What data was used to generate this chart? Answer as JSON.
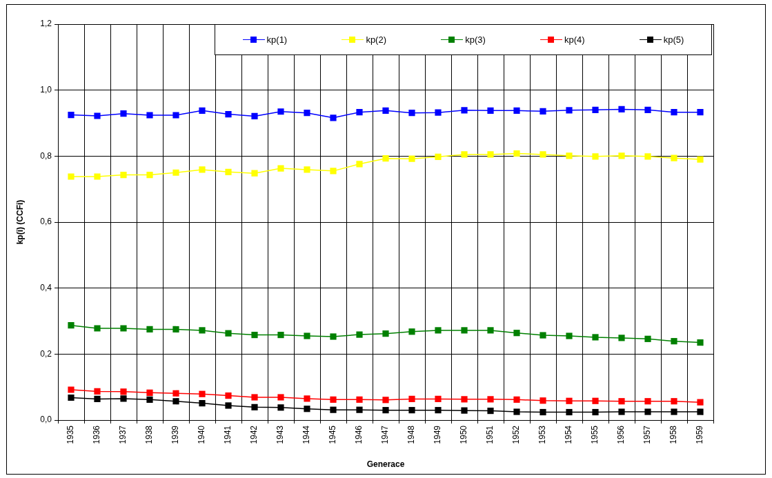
{
  "chart_data": {
    "type": "line",
    "xlabel": "Generace",
    "ylabel": "kp(i) (CCFi)",
    "categories": [
      "1935",
      "1936",
      "1937",
      "1938",
      "1939",
      "1940",
      "1941",
      "1942",
      "1943",
      "1944",
      "1945",
      "1946",
      "1947",
      "1948",
      "1949",
      "1950",
      "1951",
      "1952",
      "1953",
      "1954",
      "1955",
      "1956",
      "1957",
      "1958",
      "1959"
    ],
    "series": [
      {
        "name": "kp(1)",
        "color": "#0000ff",
        "values": [
          0.925,
          0.922,
          0.929,
          0.924,
          0.924,
          0.938,
          0.927,
          0.921,
          0.935,
          0.931,
          0.916,
          0.933,
          0.938,
          0.931,
          0.932,
          0.939,
          0.938,
          0.938,
          0.936,
          0.939,
          0.94,
          0.942,
          0.94,
          0.933,
          0.933
        ]
      },
      {
        "name": "kp(2)",
        "color": "#ffff00",
        "values": [
          0.738,
          0.738,
          0.743,
          0.743,
          0.75,
          0.759,
          0.752,
          0.748,
          0.763,
          0.759,
          0.755,
          0.776,
          0.793,
          0.792,
          0.798,
          0.805,
          0.805,
          0.808,
          0.805,
          0.801,
          0.799,
          0.801,
          0.799,
          0.794,
          0.79
        ]
      },
      {
        "name": "kp(3)",
        "color": "#008000",
        "values": [
          0.287,
          0.278,
          0.278,
          0.275,
          0.275,
          0.272,
          0.263,
          0.258,
          0.258,
          0.255,
          0.253,
          0.259,
          0.262,
          0.268,
          0.272,
          0.272,
          0.272,
          0.264,
          0.257,
          0.255,
          0.251,
          0.249,
          0.246,
          0.239,
          0.235
        ]
      },
      {
        "name": "kp(4)",
        "color": "#ff0000",
        "values": [
          0.092,
          0.087,
          0.086,
          0.083,
          0.081,
          0.079,
          0.074,
          0.069,
          0.069,
          0.065,
          0.062,
          0.062,
          0.061,
          0.064,
          0.064,
          0.063,
          0.063,
          0.062,
          0.059,
          0.058,
          0.058,
          0.057,
          0.057,
          0.057,
          0.054
        ]
      },
      {
        "name": "kp(5)",
        "color": "#000000",
        "values": [
          0.068,
          0.064,
          0.065,
          0.062,
          0.057,
          0.051,
          0.044,
          0.039,
          0.038,
          0.034,
          0.031,
          0.031,
          0.03,
          0.03,
          0.03,
          0.029,
          0.028,
          0.025,
          0.024,
          0.024,
          0.024,
          0.025,
          0.025,
          0.025,
          0.025
        ]
      }
    ],
    "ylim": [
      0,
      1.2
    ],
    "yticks": [
      {
        "value": 0,
        "label": "0,0"
      },
      {
        "value": 0.2,
        "label": "0,2"
      },
      {
        "value": 0.4,
        "label": "0,4"
      },
      {
        "value": 0.6,
        "label": "0,6"
      },
      {
        "value": 0.8,
        "label": "0,8"
      },
      {
        "value": 1,
        "label": "1,0"
      },
      {
        "value": 1.2,
        "label": "1,2"
      }
    ],
    "grid": true,
    "legend": "top right",
    "marker": "square"
  }
}
